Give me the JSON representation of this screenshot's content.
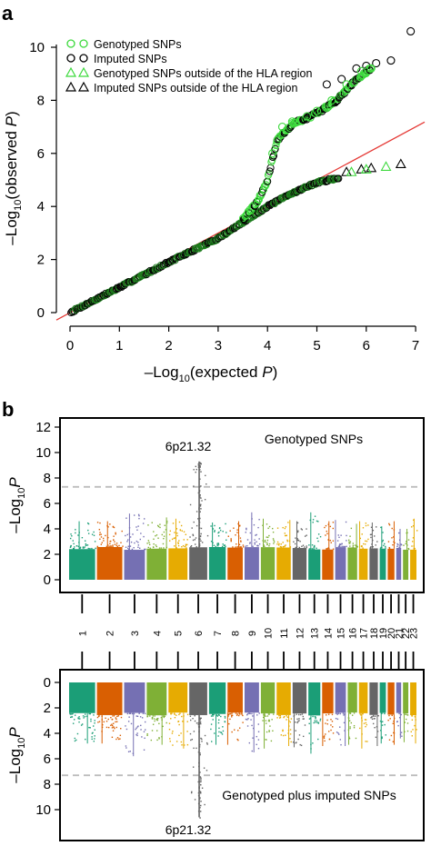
{
  "colors": {
    "genotyped": "#3cd93c",
    "imputed": "#000000",
    "reference_line": "#e53935",
    "threshold": "#bdbdbd",
    "snp_band": "#1a7a1a",
    "chrom_palette": [
      "#1b9e77",
      "#d95f02",
      "#7570b3",
      "#7fb036",
      "#e6ab02",
      "#666666"
    ]
  },
  "chart_data": [
    {
      "panel": "a",
      "panel_label": "a",
      "type": "scatter",
      "xlabel": {
        "prefix": "–Log",
        "sub": "10",
        "mid": "(expected ",
        "var": "P",
        "suffix": ")"
      },
      "ylabel": {
        "prefix": "–Log",
        "sub": "10",
        "mid": "(observed ",
        "var": "P",
        "suffix": ")"
      },
      "xlim": [
        0,
        7
      ],
      "ylim": [
        0,
        10.8
      ],
      "xticks": [
        "0",
        "1",
        "2",
        "3",
        "4",
        "5",
        "6",
        "7"
      ],
      "yticks": [
        "0",
        "2",
        "4",
        "6",
        "8",
        "10"
      ],
      "legend_position": "top-left",
      "legend": [
        {
          "marker": "circle",
          "color": "#3cd93c",
          "label": "Genotyped SNPs"
        },
        {
          "marker": "circle",
          "color": "#000000",
          "label": "Imputed SNPs"
        },
        {
          "marker": "triangle",
          "color": "#3cd93c",
          "label": "Genotyped SNPs outside of the HLA region"
        },
        {
          "marker": "triangle",
          "color": "#000000",
          "label": "Imputed SNPs outside of the HLA region"
        }
      ],
      "reference_line": {
        "from": [
          0,
          0
        ],
        "to": [
          7,
          7
        ]
      },
      "series": [
        {
          "name": "Imputed SNPs",
          "marker": "circle",
          "color": "#000000",
          "points": [
            [
              6.2,
              9.4
            ],
            [
              6.5,
              9.5
            ],
            [
              6.9,
              10.6
            ],
            [
              5.8,
              9.2
            ],
            [
              5.5,
              8.8
            ],
            [
              5.2,
              8.6
            ],
            [
              6.0,
              9.3
            ]
          ]
        },
        {
          "name": "Genotyped SNPs",
          "marker": "circle",
          "color": "#3cd93c",
          "points": [
            [
              4.1,
              6.0
            ],
            [
              4.2,
              6.5
            ],
            [
              4.3,
              7.0
            ],
            [
              4.5,
              7.2
            ],
            [
              4.8,
              7.4
            ],
            [
              5.0,
              7.6
            ],
            [
              5.3,
              8.0
            ],
            [
              5.6,
              8.6
            ],
            [
              5.9,
              9.1
            ],
            [
              6.1,
              9.2
            ]
          ]
        },
        {
          "name": "Imputed SNPs outside of the HLA region",
          "marker": "triangle",
          "color": "#000000",
          "points": [
            [
              5.6,
              5.3
            ],
            [
              5.9,
              5.4
            ],
            [
              6.1,
              5.45
            ],
            [
              6.7,
              5.6
            ]
          ]
        },
        {
          "name": "Genotyped SNPs outside of the HLA region",
          "marker": "triangle",
          "color": "#3cd93c",
          "points": [
            [
              5.7,
              5.3
            ],
            [
              6.0,
              5.4
            ],
            [
              6.4,
              5.5
            ]
          ]
        }
      ],
      "main_curve": [
        [
          0,
          0
        ],
        [
          1,
          0.95
        ],
        [
          2,
          1.9
        ],
        [
          3,
          2.8
        ],
        [
          3.5,
          3.4
        ],
        [
          4,
          4.0
        ],
        [
          4.5,
          4.5
        ],
        [
          5,
          4.9
        ],
        [
          5.5,
          5.1
        ]
      ],
      "hla_curve": [
        [
          3.5,
          3.5
        ],
        [
          3.8,
          4.2
        ],
        [
          4.0,
          5.0
        ],
        [
          4.1,
          5.8
        ],
        [
          4.2,
          6.5
        ],
        [
          4.5,
          7.1
        ],
        [
          5.0,
          7.5
        ],
        [
          5.4,
          8.0
        ],
        [
          5.8,
          8.8
        ],
        [
          6.1,
          9.2
        ]
      ]
    },
    {
      "panel": "b-top",
      "panel_label": "b",
      "type": "scatter",
      "title": "Genotyped SNPs",
      "ylabel": {
        "prefix": "–Log",
        "sub": "10",
        "var": "P"
      },
      "ylim": [
        0,
        12.5
      ],
      "yticks": [
        "0",
        "2",
        "4",
        "6",
        "8",
        "10",
        "12"
      ],
      "threshold": 7.3,
      "annotation": {
        "text": "6p21.32",
        "chromosome": 6,
        "y": 9.3
      },
      "chromosomes": [
        "1",
        "2",
        "3",
        "4",
        "5",
        "6",
        "7",
        "8",
        "9",
        "10",
        "11",
        "12",
        "13",
        "14",
        "15",
        "16",
        "17",
        "18",
        "19",
        "20",
        "21",
        "22",
        "23"
      ],
      "peak_values": [
        4.6,
        4.6,
        5.2,
        4.9,
        4.8,
        9.3,
        4.5,
        4.6,
        5.3,
        4.8,
        4.7,
        4.6,
        5.3,
        4.6,
        4.7,
        4.4,
        4.6,
        4.5,
        4.2,
        4.6,
        4.0,
        4.0,
        4.8
      ]
    },
    {
      "panel": "b-bottom",
      "type": "scatter",
      "title": "Genotyped plus imputed SNPs",
      "ylabel": {
        "prefix": "–Log",
        "sub": "10",
        "var": "P"
      },
      "ylim": [
        0,
        12
      ],
      "yticks": [
        "0",
        "2",
        "4",
        "6",
        "8",
        "10"
      ],
      "inverted": true,
      "threshold": 7.3,
      "annotation": {
        "text": "6p21.32",
        "chromosome": 6,
        "y": 10.6
      },
      "chromosomes": [
        "1",
        "2",
        "3",
        "4",
        "5",
        "6",
        "7",
        "8",
        "9",
        "10",
        "11",
        "12",
        "13",
        "14",
        "15",
        "16",
        "17",
        "18",
        "19",
        "20",
        "21",
        "22",
        "23"
      ],
      "peak_values": [
        4.8,
        4.8,
        5.8,
        4.9,
        5.2,
        10.6,
        4.9,
        4.9,
        5.5,
        5.2,
        5.0,
        5.1,
        5.6,
        5.0,
        5.0,
        4.9,
        5.2,
        5.0,
        4.8,
        4.9,
        4.4,
        4.7,
        4.8
      ]
    }
  ]
}
